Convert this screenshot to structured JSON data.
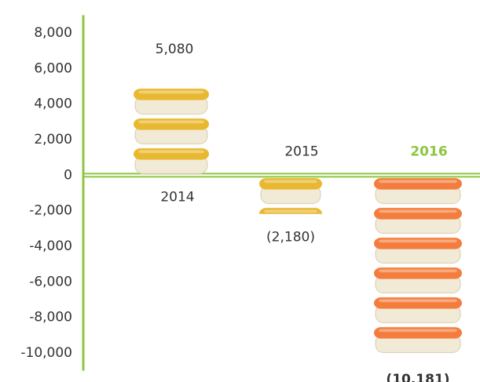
{
  "chart_data": {
    "type": "bar",
    "categories": [
      "2014",
      "2015",
      "2016"
    ],
    "values": [
      5080,
      -2180,
      -10181
    ],
    "value_labels": [
      "5,080",
      "(2,180)",
      "(10,181)"
    ],
    "colors": [
      "#e8b830",
      "#e8b830",
      "#f47c3c"
    ],
    "label_colors": [
      "#333333",
      "#333333",
      "#8dc63f"
    ],
    "axis_color": "#8dc63f",
    "ylim": [
      -11000,
      9000
    ],
    "yticks": [
      {
        "value": 8000,
        "label": "8,000"
      },
      {
        "value": 6000,
        "label": "6,000"
      },
      {
        "value": 4000,
        "label": "4,000"
      },
      {
        "value": 2000,
        "label": "2,000"
      },
      0,
      {
        "value": -2000,
        "label": "-2,000"
      },
      {
        "value": -4000,
        "label": "-4,000"
      },
      {
        "value": -6000,
        "label": "-6,000"
      },
      {
        "value": -8000,
        "label": "-8,000"
      },
      {
        "value": -10000,
        "label": "-10,000"
      }
    ]
  }
}
